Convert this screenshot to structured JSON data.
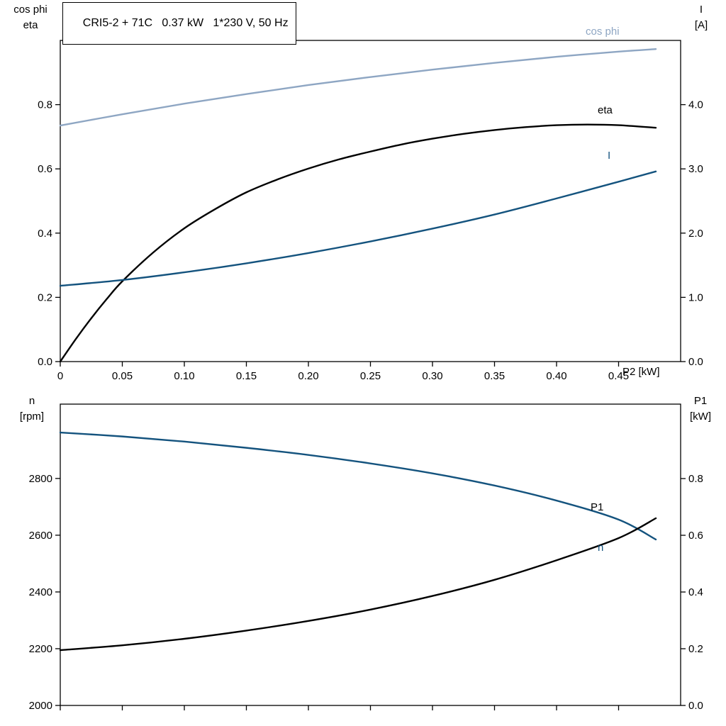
{
  "chart_data": [
    {
      "type": "line",
      "title": "CRI5-2 + 71C   0.37 kW   1*230 V, 50 Hz",
      "x_axis": {
        "label": "P2 [kW]",
        "min": 0,
        "max": 0.5,
        "ticks": [
          {
            "v": 0,
            "t": "0"
          },
          {
            "v": 0.05,
            "t": "0.05"
          },
          {
            "v": 0.1,
            "t": "0.10"
          },
          {
            "v": 0.15,
            "t": "0.15"
          },
          {
            "v": 0.2,
            "t": "0.20"
          },
          {
            "v": 0.25,
            "t": "0.25"
          },
          {
            "v": 0.3,
            "t": "0.30"
          },
          {
            "v": 0.35,
            "t": "0.35"
          },
          {
            "v": 0.4,
            "t": "0.40"
          },
          {
            "v": 0.45,
            "t": "0.45"
          }
        ]
      },
      "left_axis": {
        "label1": "cos phi",
        "label2": "eta",
        "min": 0,
        "max": 1.0,
        "ticks": [
          {
            "v": 0.0,
            "t": "0.0"
          },
          {
            "v": 0.2,
            "t": "0.2"
          },
          {
            "v": 0.4,
            "t": "0.4"
          },
          {
            "v": 0.6,
            "t": "0.6"
          },
          {
            "v": 0.8,
            "t": "0.8"
          }
        ]
      },
      "right_axis": {
        "label1": "I",
        "label2": "[A]",
        "min": 0,
        "max": 5.0,
        "ticks": [
          {
            "v": 0,
            "t": "0.0"
          },
          {
            "v": 1,
            "t": "1.0"
          },
          {
            "v": 2,
            "t": "2.0"
          },
          {
            "v": 3,
            "t": "3.0"
          },
          {
            "v": 4,
            "t": "4.0"
          }
        ]
      },
      "series": [
        {
          "name": "cos phi",
          "axis": "left",
          "color": "#8ea6c3",
          "x": [
            0,
            0.05,
            0.1,
            0.15,
            0.2,
            0.25,
            0.3,
            0.35,
            0.4,
            0.45,
            0.48
          ],
          "y": [
            0.735,
            0.77,
            0.803,
            0.833,
            0.861,
            0.886,
            0.909,
            0.93,
            0.949,
            0.965,
            0.973
          ]
        },
        {
          "name": "eta",
          "axis": "left",
          "color": "#000000",
          "x": [
            0,
            0.0125,
            0.025,
            0.0375,
            0.05,
            0.075,
            0.1,
            0.125,
            0.15,
            0.175,
            0.2,
            0.225,
            0.25,
            0.275,
            0.3,
            0.325,
            0.35,
            0.375,
            0.4,
            0.425,
            0.45,
            0.48
          ],
          "y": [
            0,
            0.07,
            0.135,
            0.195,
            0.25,
            0.34,
            0.415,
            0.475,
            0.527,
            0.567,
            0.601,
            0.63,
            0.654,
            0.676,
            0.694,
            0.709,
            0.721,
            0.73,
            0.736,
            0.738,
            0.736,
            0.728
          ]
        },
        {
          "name": "I",
          "axis": "right",
          "color": "#14537e",
          "x": [
            0,
            0.05,
            0.1,
            0.15,
            0.2,
            0.25,
            0.3,
            0.35,
            0.4,
            0.45,
            0.48
          ],
          "y": [
            1.18,
            1.27,
            1.39,
            1.53,
            1.69,
            1.87,
            2.07,
            2.29,
            2.54,
            2.8,
            2.96
          ]
        }
      ]
    },
    {
      "type": "line",
      "title": "",
      "x_axis": {
        "label": "",
        "min": 0,
        "max": 0.5,
        "ticks": [
          {
            "v": 0,
            "t": ""
          },
          {
            "v": 0.05,
            "t": ""
          },
          {
            "v": 0.1,
            "t": ""
          },
          {
            "v": 0.15,
            "t": ""
          },
          {
            "v": 0.2,
            "t": ""
          },
          {
            "v": 0.25,
            "t": ""
          },
          {
            "v": 0.3,
            "t": ""
          },
          {
            "v": 0.35,
            "t": ""
          },
          {
            "v": 0.4,
            "t": ""
          },
          {
            "v": 0.45,
            "t": ""
          }
        ]
      },
      "left_axis": {
        "label1": "n",
        "label2": "[rpm]",
        "min": 2000,
        "max": 3062,
        "ticks": [
          {
            "v": 2000,
            "t": "2000"
          },
          {
            "v": 2200,
            "t": "2200"
          },
          {
            "v": 2400,
            "t": "2400"
          },
          {
            "v": 2600,
            "t": "2600"
          },
          {
            "v": 2800,
            "t": "2800"
          }
        ]
      },
      "right_axis": {
        "label1": "P1",
        "label2": "[kW]",
        "min": 0,
        "max": 1.0625,
        "ticks": [
          {
            "v": 0,
            "t": "0.0"
          },
          {
            "v": 0.2,
            "t": "0.2"
          },
          {
            "v": 0.4,
            "t": "0.4"
          },
          {
            "v": 0.6,
            "t": "0.6"
          },
          {
            "v": 0.8,
            "t": "0.8"
          }
        ]
      },
      "series": [
        {
          "name": "n",
          "axis": "left",
          "color": "#14537e",
          "x": [
            0,
            0.05,
            0.1,
            0.15,
            0.2,
            0.25,
            0.3,
            0.35,
            0.4,
            0.45,
            0.48
          ],
          "y": [
            2962,
            2948,
            2930,
            2908,
            2883,
            2853,
            2818,
            2775,
            2722,
            2655,
            2585
          ]
        },
        {
          "name": "P1",
          "axis": "right",
          "color": "#000000",
          "x": [
            0,
            0.05,
            0.1,
            0.15,
            0.2,
            0.25,
            0.3,
            0.35,
            0.4,
            0.45,
            0.48
          ],
          "y": [
            0.195,
            0.212,
            0.235,
            0.264,
            0.298,
            0.338,
            0.386,
            0.443,
            0.512,
            0.59,
            0.66
          ]
        }
      ]
    }
  ]
}
